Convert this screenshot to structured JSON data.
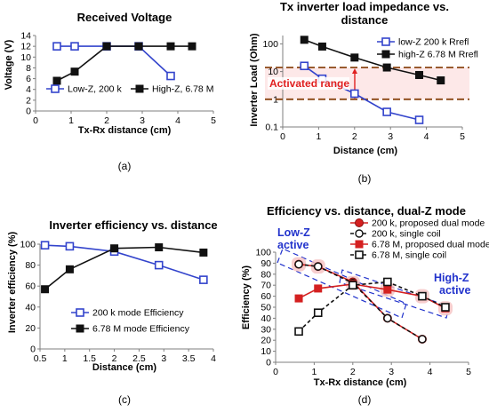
{
  "chart_data": [
    {
      "id": "a",
      "type": "line",
      "title": "Received Voltage",
      "xlabel": "Tx-Rx distance (cm)",
      "ylabel": "Voltage (V)",
      "xlim": [
        0,
        5
      ],
      "ylim": [
        0,
        14
      ],
      "xticks": [
        0,
        1,
        2,
        3,
        4,
        5
      ],
      "yticks": [
        0,
        2,
        4,
        6,
        8,
        10,
        12,
        14
      ],
      "grid": false,
      "legend_position": "bottom",
      "caption": "(a)",
      "series": [
        {
          "name": "Low-Z, 200 k",
          "color": "#3344cc",
          "marker": "open-square",
          "dash": "",
          "x": [
            0.6,
            1.1,
            2.0,
            2.9,
            3.8
          ],
          "y": [
            12,
            12,
            12,
            12,
            6.5
          ]
        },
        {
          "name": "High-Z, 6.78 M",
          "color": "#111111",
          "marker": "filled-square",
          "dash": "",
          "x": [
            0.6,
            1.1,
            2.0,
            2.9,
            3.8,
            4.4
          ],
          "y": [
            5.6,
            7.3,
            12,
            12,
            12,
            12
          ]
        }
      ]
    },
    {
      "id": "b",
      "type": "line",
      "title_lines": [
        "Tx inverter load impedance vs.",
        "distance"
      ],
      "xlabel": "Distance (cm)",
      "ylabel": "Inverter Load (Ohm)",
      "xscale": "linear",
      "yscale": "log",
      "xlim": [
        0,
        5
      ],
      "ylim": [
        0.1,
        200
      ],
      "xticks": [
        0,
        1,
        2,
        3,
        4,
        5
      ],
      "yticks": [
        0.1,
        1,
        10,
        100
      ],
      "grid": false,
      "legend_position": "top-right",
      "caption": "(b)",
      "annotation": {
        "text": "Activated range",
        "color": "#e02020",
        "band_color": "#8b4513",
        "band_low": 1,
        "band_high": 14
      },
      "series": [
        {
          "name": "low-Z 200 k Rrefl",
          "color": "#3344cc",
          "marker": "open-square",
          "dash": "",
          "x": [
            0.6,
            1.1,
            2.0,
            2.9,
            3.8
          ],
          "y": [
            16,
            5.5,
            1.6,
            0.35,
            0.18
          ]
        },
        {
          "name": "high-Z 6.78 M Rrefl",
          "color": "#111111",
          "marker": "filled-square",
          "dash": "",
          "x": [
            0.6,
            1.1,
            2.0,
            2.9,
            3.8,
            4.4
          ],
          "y": [
            140,
            80,
            32,
            14,
            7.5,
            4.8
          ]
        }
      ]
    },
    {
      "id": "c",
      "type": "line",
      "title": "Inverter efficiency vs. distance",
      "xlabel": "Distance (cm)",
      "ylabel": "Inverter efficiency (%)",
      "xlim": [
        0.5,
        4
      ],
      "ylim": [
        0,
        100
      ],
      "xticks": [
        0.5,
        1,
        1.5,
        2,
        2.5,
        3,
        3.5,
        4
      ],
      "yticks": [
        0,
        20,
        40,
        60,
        80,
        100
      ],
      "grid": false,
      "legend_position": "bottom-right",
      "caption": "(c)",
      "series": [
        {
          "name": "200 k mode Efficiency",
          "color": "#3344cc",
          "marker": "open-square",
          "dash": "",
          "x": [
            0.6,
            1.1,
            2.0,
            2.9,
            3.8
          ],
          "y": [
            99,
            98,
            93,
            80,
            66
          ]
        },
        {
          "name": "6.78 M mode Efficiency",
          "color": "#111111",
          "marker": "filled-square",
          "dash": "",
          "x": [
            0.6,
            1.1,
            2.0,
            2.9,
            3.8
          ],
          "y": [
            57,
            76,
            96,
            97,
            92
          ]
        }
      ]
    },
    {
      "id": "d",
      "type": "line",
      "title": "Efficiency vs. distance, dual-Z mode",
      "xlabel": "Tx-Rx distance (cm)",
      "ylabel": "Efficiency (%)",
      "xlim": [
        0,
        5
      ],
      "ylim": [
        0,
        100
      ],
      "xticks": [
        0,
        1,
        2,
        3,
        4,
        5
      ],
      "yticks": [
        0,
        10,
        20,
        30,
        40,
        50,
        60,
        70,
        80,
        90,
        100
      ],
      "grid": false,
      "legend_position": "top-right",
      "caption": "(d)",
      "annotations": [
        {
          "text_lines": [
            "Low-Z",
            "active"
          ],
          "color": "#2233cc"
        },
        {
          "text_lines": [
            "High-Z",
            "active"
          ],
          "color": "#2233cc"
        }
      ],
      "series": [
        {
          "name": "200 k, proposed dual mode",
          "color": "#d42020",
          "marker": "filled-circle",
          "dash": "",
          "x": [
            0.6,
            1.1,
            2.0,
            2.9,
            3.8
          ],
          "y": [
            89,
            87,
            73,
            40,
            21
          ]
        },
        {
          "name": "200 k, single coil",
          "color": "#111111",
          "marker": "open-circle",
          "dash": "4,3",
          "x": [
            0.6,
            1.1,
            2.0,
            2.9,
            3.8
          ],
          "y": [
            89,
            87,
            72,
            40,
            21
          ]
        },
        {
          "name": "6.78 M, proposed dual mode",
          "color": "#d42020",
          "marker": "filled-square",
          "dash": "",
          "x": [
            0.6,
            1.1,
            2.0,
            2.9,
            3.8,
            4.4
          ],
          "y": [
            58,
            67,
            71,
            66,
            60,
            49
          ]
        },
        {
          "name": "6.78 M, single coil",
          "color": "#111111",
          "marker": "open-square",
          "dash": "4,3",
          "x": [
            0.6,
            1.1,
            2.0,
            2.9,
            3.8,
            4.4
          ],
          "y": [
            28,
            45,
            70,
            73,
            60,
            50
          ]
        }
      ]
    }
  ]
}
